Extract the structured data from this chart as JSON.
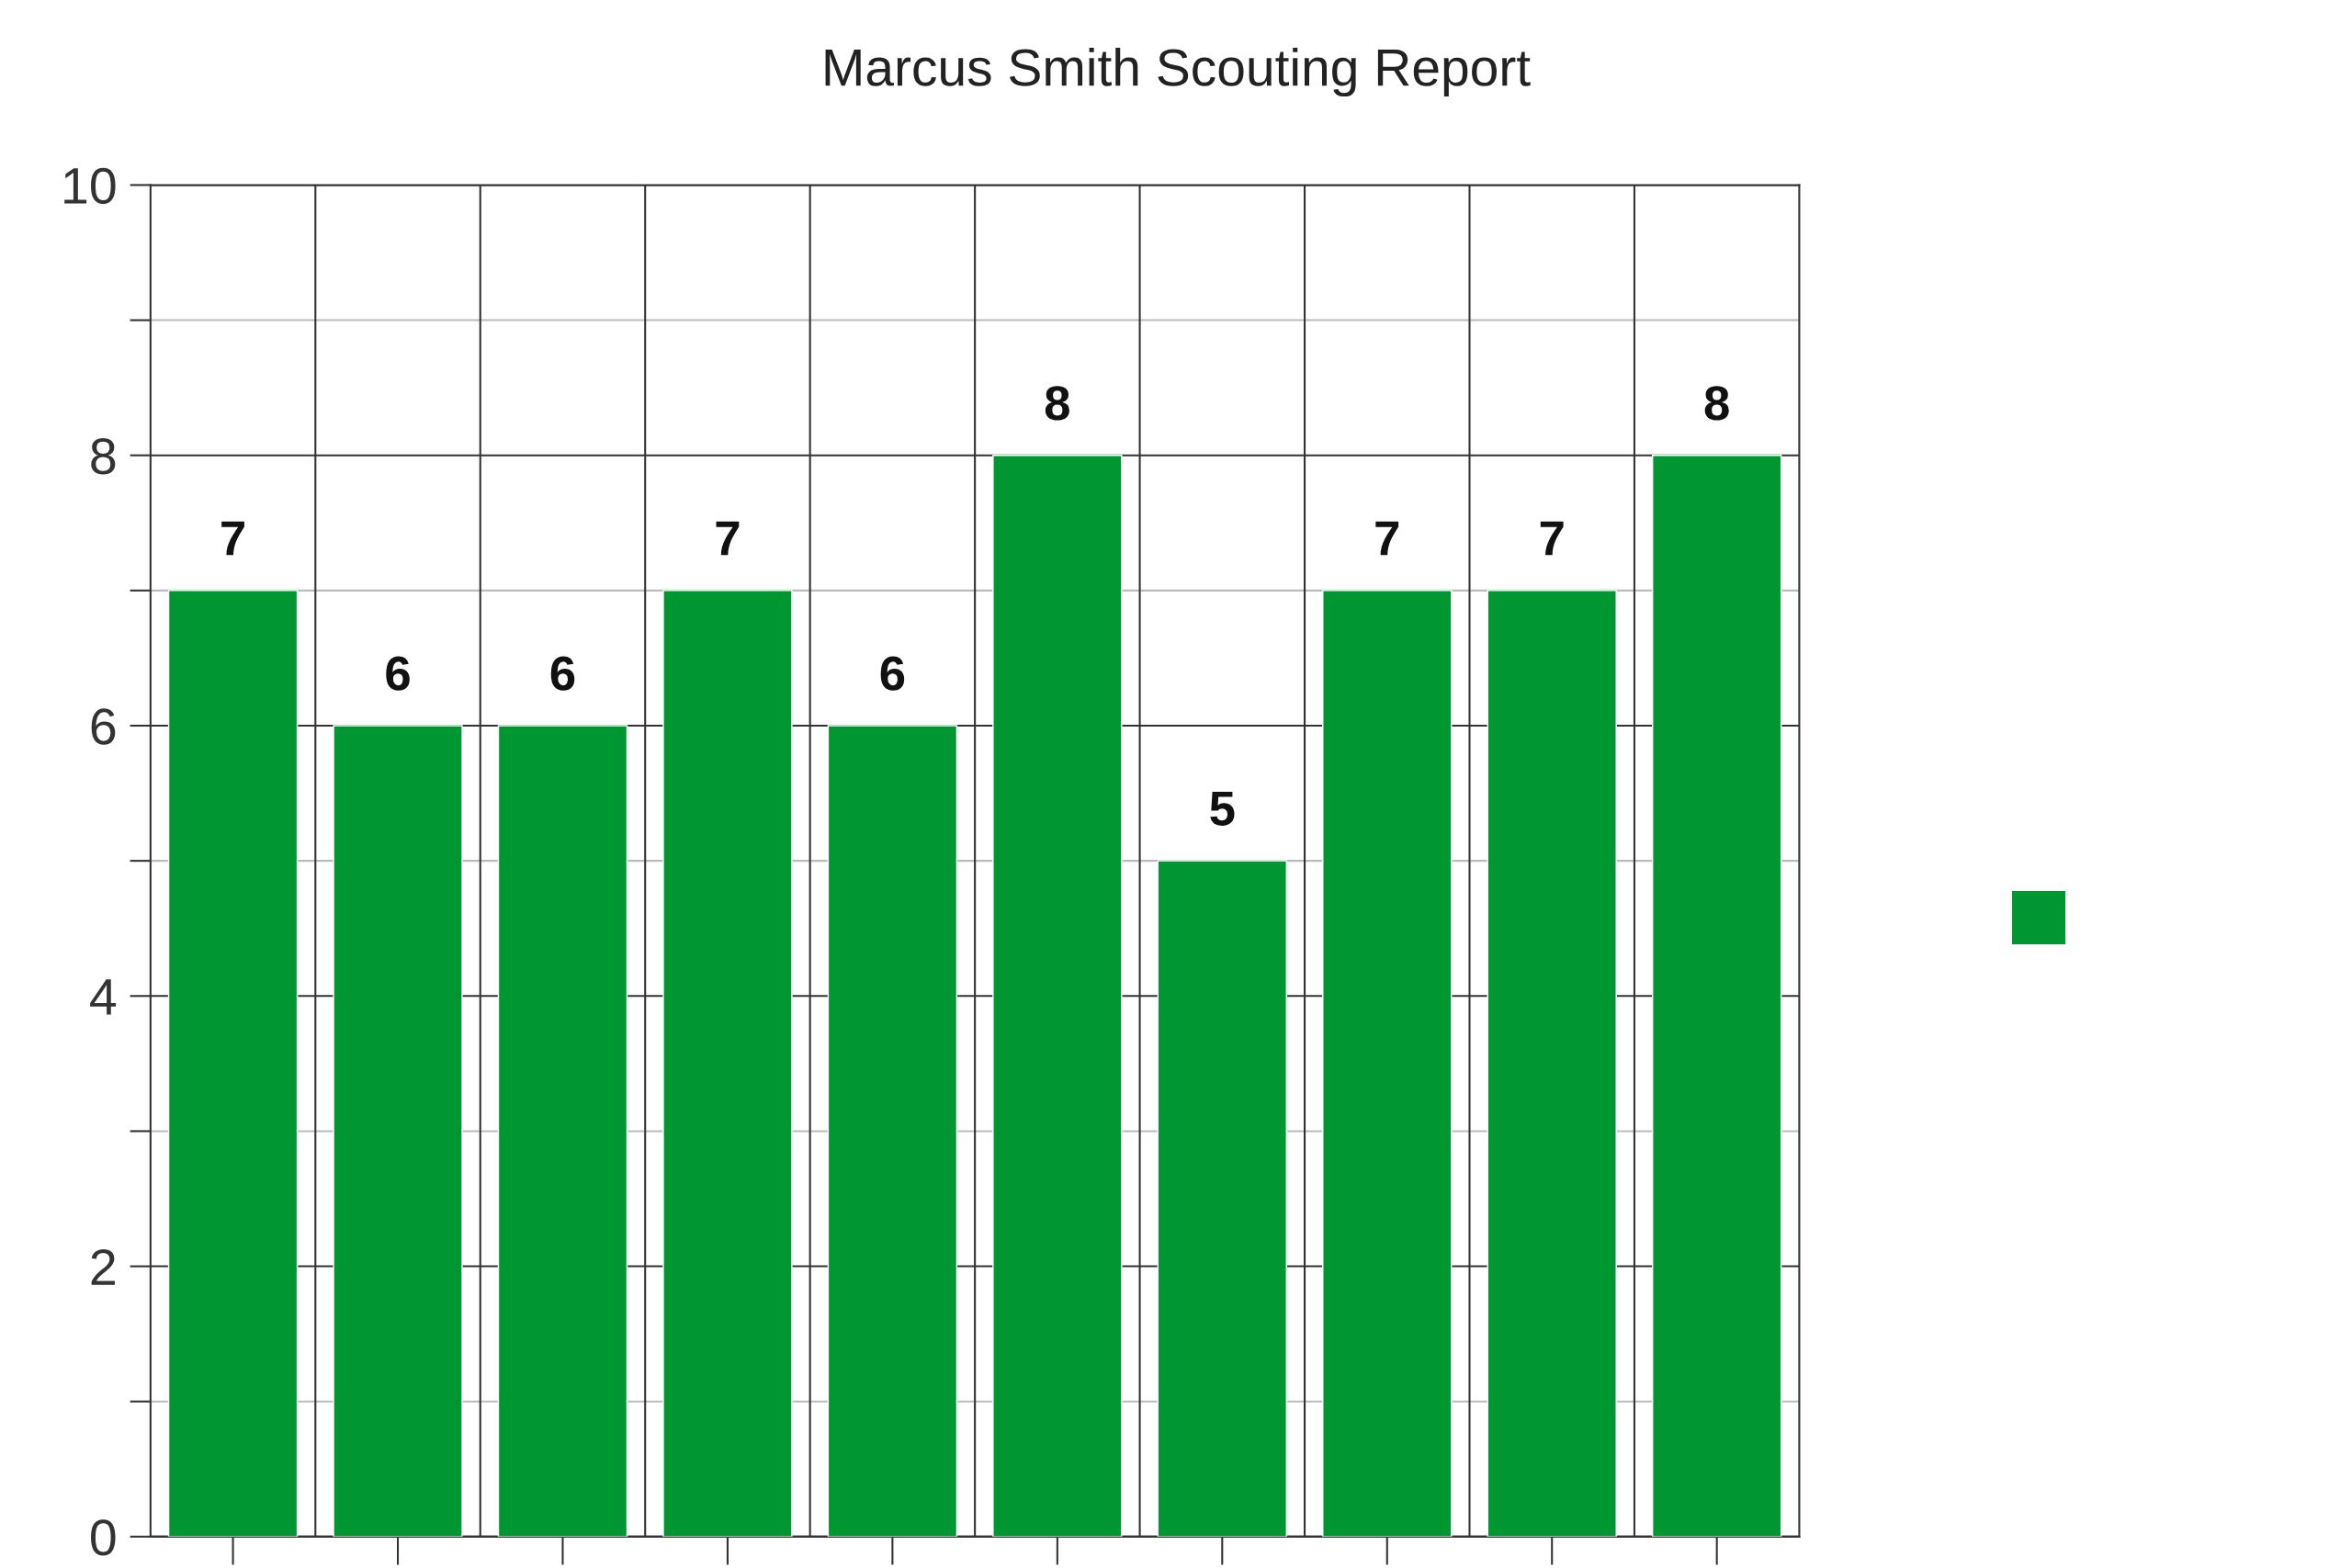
{
  "chart_data": {
    "type": "bar",
    "title": "Marcus Smith Scouting Report",
    "categories": [
      null,
      null,
      null,
      null,
      null,
      null,
      null,
      null,
      null,
      null
    ],
    "values": [
      7,
      6,
      6,
      7,
      6,
      8,
      5,
      7,
      7,
      8
    ],
    "color": "#009632",
    "ylim": [
      0,
      10
    ],
    "yticks": [
      0,
      {
        "value": 1,
        "label": null
      },
      2,
      {
        "value": 3,
        "label": null
      },
      4,
      {
        "value": 5,
        "label": null
      },
      6,
      {
        "value": 7,
        "label": null
      },
      8,
      {
        "value": 9,
        "label": null
      },
      10
    ],
    "tick_labels": "y",
    "grid": true,
    "data_labels": true
  }
}
